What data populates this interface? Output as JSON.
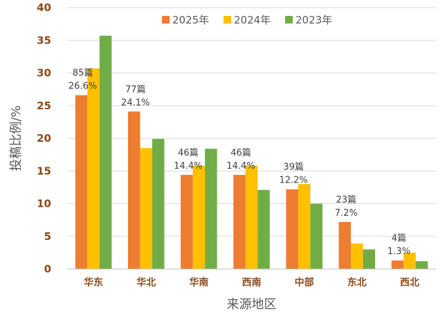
{
  "chart_data": {
    "type": "bar",
    "xlabel": "来源地区",
    "ylabel": "投稿比例/%",
    "ylim": [
      0,
      40
    ],
    "yticks": [
      0,
      5,
      10,
      15,
      20,
      25,
      30,
      35,
      40
    ],
    "grid": true,
    "legend_position": "top-right",
    "categories": [
      "华东",
      "华北",
      "华南",
      "西南",
      "中部",
      "东北",
      "西北"
    ],
    "series": [
      {
        "name": "2025年",
        "color": "#ED7D31",
        "values": [
          26.6,
          24.1,
          14.4,
          14.4,
          12.2,
          7.2,
          1.3
        ]
      },
      {
        "name": "2024年",
        "color": "#FFC000",
        "values": [
          30.7,
          18.5,
          15.8,
          15.8,
          13.0,
          3.9,
          2.5
        ]
      },
      {
        "name": "2023年",
        "color": "#70AD47",
        "values": [
          35.7,
          19.9,
          18.4,
          12.1,
          10.0,
          3.0,
          1.2
        ]
      }
    ],
    "annotations": [
      {
        "count": "85篇",
        "percent": "26.6%"
      },
      {
        "count": "77篇",
        "percent": "24.1%"
      },
      {
        "count": "46篇",
        "percent": "14.4%"
      },
      {
        "count": "46篇",
        "percent": "14.4%"
      },
      {
        "count": "39篇",
        "percent": "12.2%"
      },
      {
        "count": "23篇",
        "percent": "7.2%"
      },
      {
        "count": "4篇",
        "percent": "1.3%"
      }
    ]
  }
}
